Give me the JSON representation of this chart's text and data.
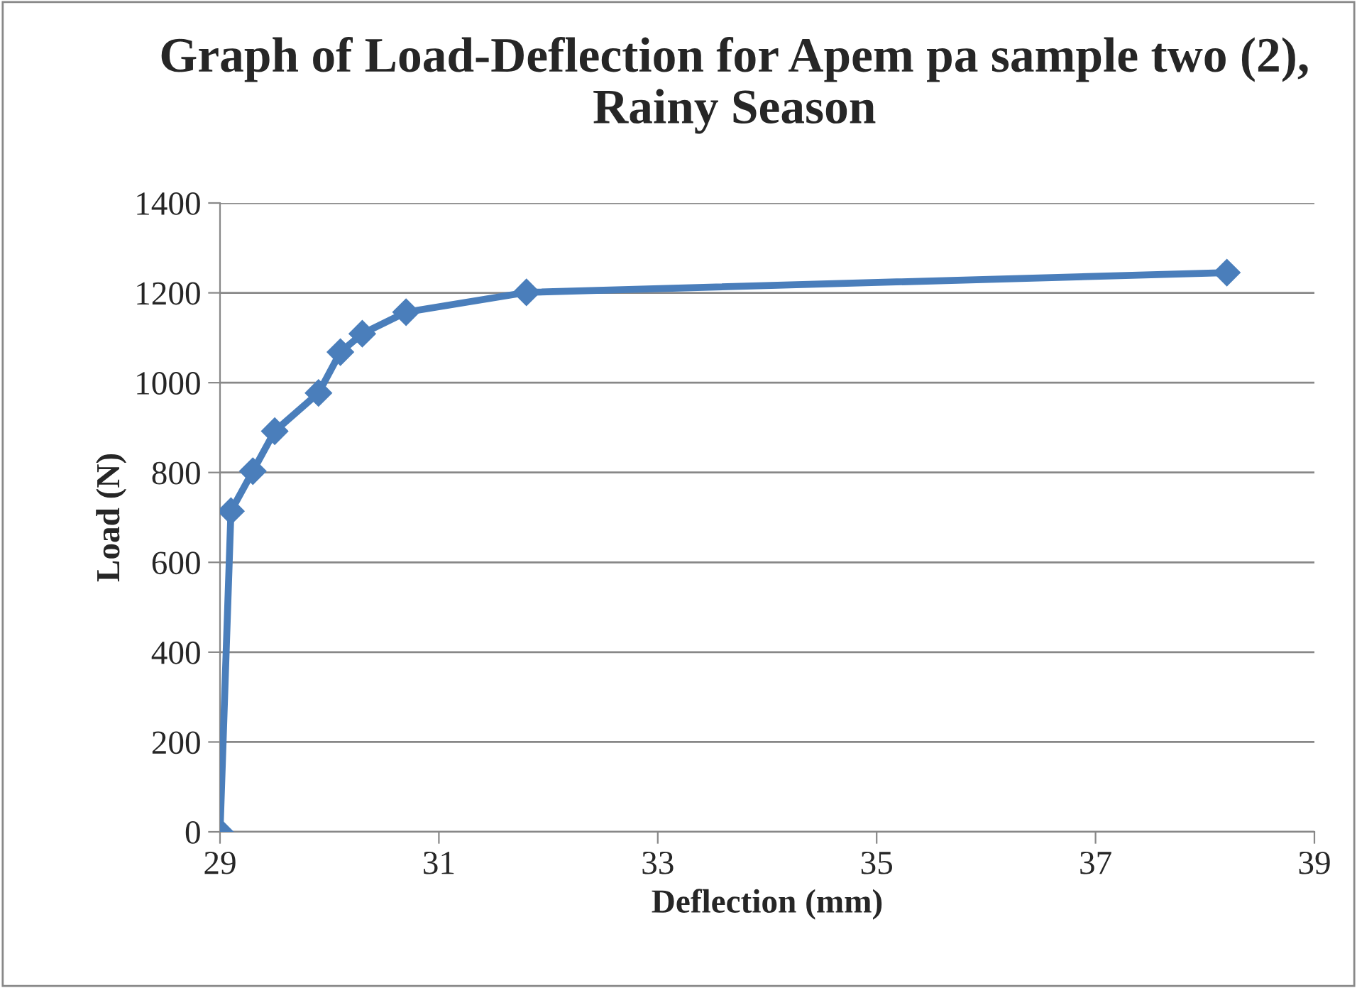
{
  "chart_data": {
    "type": "line",
    "title": "Graph of Load-Deflection for Apem pa sample two (2), Rainy Season",
    "xlabel": "Deflection (mm)",
    "ylabel": "Load (N)",
    "x": [
      29.0,
      29.1,
      29.3,
      29.5,
      29.9,
      30.1,
      30.3,
      30.7,
      31.8,
      38.2
    ],
    "series": [
      {
        "color": "#4a7ebb",
        "values": [
          0,
          714,
          803,
          892,
          977,
          1068,
          1109,
          1157,
          1201,
          1245
        ]
      }
    ],
    "xlim": [
      29,
      39
    ],
    "xticks": [
      29,
      31,
      33,
      35,
      37,
      39
    ],
    "ylim": [
      0,
      1400
    ],
    "yticks": [
      0,
      200,
      400,
      600,
      800,
      1000,
      1200,
      1400
    ],
    "grid": "y",
    "marker": "diamond",
    "line_style": "solid",
    "legend": false
  }
}
